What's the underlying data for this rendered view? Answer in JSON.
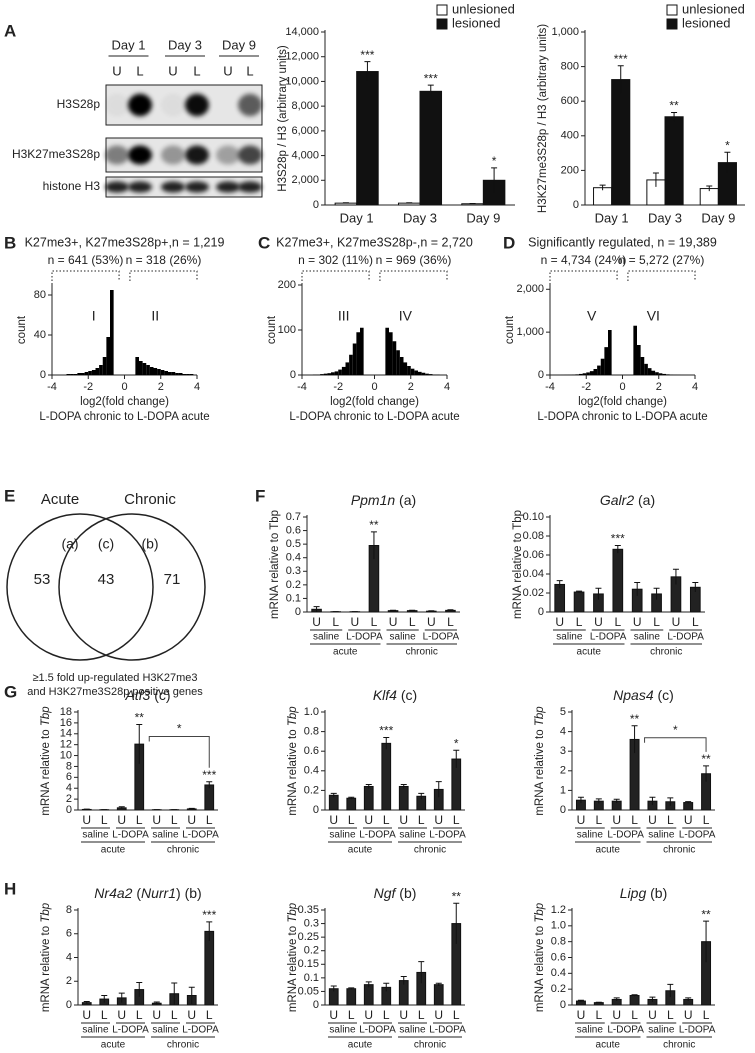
{
  "panels": [
    "A",
    "B",
    "C",
    "D",
    "E",
    "F",
    "G",
    "H"
  ],
  "blot": {
    "days": [
      "Day 1",
      "Day 3",
      "Day 9"
    ],
    "lanes": [
      "U",
      "L",
      "U",
      "L",
      "U",
      "L"
    ],
    "rows": [
      "H3S28p",
      "H3K27me3S28p",
      "histone H3"
    ]
  },
  "venn": {
    "sets": [
      "Acute",
      "Chronic"
    ],
    "regions": [
      {
        "label": "(a)",
        "count": 53
      },
      {
        "label": "(c)",
        "count": 43
      },
      {
        "label": "(b)",
        "count": 71
      }
    ],
    "caption": [
      "≥1.5 fold up-regulated H3K27me3",
      "and H3K27me3S28p positive genes"
    ]
  },
  "chart_data": [
    {
      "type": "bar",
      "ylabel": "H3S28p / H3 (arbitrary units)",
      "categories": [
        "Day 1",
        "Day 3",
        "Day 9"
      ],
      "series": [
        {
          "name": "unlesioned",
          "color": "#ffffff",
          "values": [
            150,
            150,
            100
          ],
          "errors": [
            30,
            30,
            20
          ]
        },
        {
          "name": "lesioned",
          "color": "#111111",
          "values": [
            10800,
            9200,
            2000
          ],
          "errors": [
            800,
            500,
            1000
          ],
          "annotations": [
            "***",
            "***",
            "*"
          ]
        }
      ],
      "ylim": [
        0,
        14000
      ],
      "yticks": [
        0,
        {
          "value": 2000,
          "label": "2,000"
        },
        {
          "value": 4000,
          "label": "4,000"
        },
        {
          "value": 6000,
          "label": "6,000"
        },
        {
          "value": 8000,
          "label": "8,000"
        },
        {
          "value": 10000,
          "label": "10,000"
        },
        {
          "value": 12000,
          "label": "12,000"
        },
        {
          "value": 14000,
          "label": "14,000"
        }
      ],
      "legend": "upper right"
    },
    {
      "type": "bar",
      "ylabel": "H3K27me3S28p / H3 (arbitrary units)",
      "categories": [
        "Day 1",
        "Day 3",
        "Day 9"
      ],
      "series": [
        {
          "name": "unlesioned",
          "color": "#ffffff",
          "values": [
            100,
            145,
            95
          ],
          "errors": [
            15,
            40,
            15
          ]
        },
        {
          "name": "lesioned",
          "color": "#111111",
          "values": [
            725,
            510,
            245
          ],
          "errors": [
            80,
            25,
            60
          ],
          "annotations": [
            "***",
            "**",
            "*"
          ]
        }
      ],
      "ylim": [
        0,
        1000
      ],
      "yticks": [
        0,
        200,
        400,
        600,
        800,
        {
          "value": 1000,
          "label": "1,000"
        }
      ],
      "legend": "upper right"
    },
    {
      "type": "histogram",
      "title": "K27me3+, K27me3S28p+,n = 1,219",
      "subsets": [
        "n = 641 (53%)",
        "n = 318 (26%)"
      ],
      "regions": [
        "I",
        "II"
      ],
      "ylabel": "count",
      "xlabel": [
        "log2(fold change)",
        "L-DOPA chronic to L-DOPA acute"
      ],
      "color": "#000000",
      "bins": [
        -4,
        -3.8,
        -3.6,
        -3.4,
        -3.2,
        -3,
        -2.8,
        -2.6,
        -2.4,
        -2.2,
        -2,
        -1.8,
        -1.6,
        -1.4,
        -1.2,
        -1,
        -0.8,
        -0.6,
        -0.4,
        -0.2,
        0,
        0.2,
        0.4,
        0.6,
        0.8,
        1,
        1.2,
        1.4,
        1.6,
        1.8,
        2,
        2.2,
        2.4,
        2.6,
        2.8,
        3,
        3.2,
        3.4,
        3.6,
        3.8,
        4
      ],
      "counts": [
        0,
        0,
        0,
        0,
        1,
        1,
        1,
        2,
        2,
        3,
        4,
        5,
        7,
        10,
        18,
        38,
        85,
        0,
        0,
        0,
        0,
        0,
        0,
        18,
        14,
        12,
        10,
        8,
        7,
        6,
        5,
        4,
        3,
        3,
        2,
        2,
        1,
        1,
        1,
        0
      ],
      "xlim": [
        -4,
        4
      ],
      "xticks": [
        -4,
        -2,
        0,
        2,
        4
      ],
      "ylim": [
        0,
        90
      ],
      "yticks": [
        0,
        40,
        80
      ]
    },
    {
      "type": "histogram",
      "title": "K27me3+, K27me3S28p-,n = 2,720",
      "subsets": [
        "n = 302 (11%)",
        "n = 969 (36%)"
      ],
      "regions": [
        "III",
        "IV"
      ],
      "ylabel": "count",
      "xlabel": [
        "log2(fold change)",
        "L-DOPA chronic to L-DOPA acute"
      ],
      "color": "#000000",
      "bins": [
        -4,
        -3.8,
        -3.6,
        -3.4,
        -3.2,
        -3,
        -2.8,
        -2.6,
        -2.4,
        -2.2,
        -2,
        -1.8,
        -1.6,
        -1.4,
        -1.2,
        -1,
        -0.8,
        -0.6,
        -0.4,
        -0.2,
        0,
        0.2,
        0.4,
        0.6,
        0.8,
        1,
        1.2,
        1.4,
        1.6,
        1.8,
        2,
        2.2,
        2.4,
        2.6,
        2.8,
        3,
        3.2,
        3.4,
        3.6,
        3.8,
        4
      ],
      "counts": [
        0,
        0,
        0,
        1,
        1,
        2,
        3,
        4,
        6,
        8,
        12,
        18,
        28,
        45,
        70,
        95,
        105,
        0,
        0,
        0,
        0,
        0,
        0,
        105,
        95,
        75,
        55,
        40,
        28,
        20,
        14,
        10,
        7,
        5,
        3,
        2,
        1,
        1,
        0,
        0
      ],
      "xlim": [
        -4,
        4
      ],
      "xticks": [
        -4,
        -2,
        0,
        2,
        4
      ],
      "ylim": [
        0,
        200
      ],
      "yticks": [
        0,
        100,
        200
      ]
    },
    {
      "type": "histogram",
      "title": "Significantly regulated, n = 19,389",
      "subsets": [
        "n = 4,734 (24%)",
        "n = 5,272 (27%)"
      ],
      "regions": [
        "V",
        "VI"
      ],
      "ylabel": "count",
      "xlabel": [
        "log2(fold change)",
        "L-DOPA chronic to L-DOPA acute"
      ],
      "color": "#000000",
      "bins": [
        -4,
        -3.8,
        -3.6,
        -3.4,
        -3.2,
        -3,
        -2.8,
        -2.6,
        -2.4,
        -2.2,
        -2,
        -1.8,
        -1.6,
        -1.4,
        -1.2,
        -1,
        -0.8,
        -0.6,
        -0.4,
        -0.2,
        0,
        0.2,
        0.4,
        0.6,
        0.8,
        1,
        1.2,
        1.4,
        1.6,
        1.8,
        2,
        2.2,
        2.4,
        2.6,
        2.8,
        3,
        3.2,
        3.4,
        3.6,
        3.8,
        4
      ],
      "counts": [
        0,
        0,
        0,
        2,
        4,
        6,
        10,
        15,
        25,
        40,
        60,
        90,
        140,
        220,
        380,
        650,
        1050,
        0,
        0,
        0,
        0,
        0,
        0,
        1150,
        700,
        420,
        260,
        160,
        100,
        65,
        40,
        25,
        15,
        10,
        6,
        4,
        2,
        1,
        0,
        0
      ],
      "xlim": [
        -4,
        4
      ],
      "xticks": [
        -4,
        -2,
        0,
        2,
        4
      ],
      "ylim": [
        0,
        2100
      ],
      "yticks": [
        0,
        {
          "value": 1000,
          "label": "1,000"
        },
        {
          "value": 2000,
          "label": "2,000"
        }
      ]
    },
    {
      "type": "bar",
      "title": [
        {
          "text": "Ppm1n",
          "italic": true
        },
        {
          "text": " (a)",
          "italic": false
        }
      ],
      "ylabel": [
        {
          "text": "mRNA relative to Tbp",
          "italic": false
        }
      ],
      "categories": [
        "U",
        "L",
        "U",
        "L",
        "U",
        "L",
        "U",
        "L"
      ],
      "groups": [
        "saline",
        "L-DOPA",
        "saline",
        "L-DOPA"
      ],
      "supergroups": [
        "acute",
        "chronic"
      ],
      "color": "#222222",
      "values": [
        0.02,
        0.002,
        0.002,
        0.49,
        0.01,
        0.01,
        0.006,
        0.012
      ],
      "errors": [
        0.02,
        0.001,
        0.001,
        0.1,
        0.003,
        0.003,
        0.003,
        0.005
      ],
      "annotations": [
        null,
        null,
        null,
        "**",
        null,
        null,
        null,
        null
      ],
      "ylim": [
        0,
        0.7
      ],
      "yticks": [
        0,
        0.1,
        0.2,
        0.3,
        0.4,
        0.5,
        0.6,
        0.7
      ]
    },
    {
      "type": "bar",
      "title": [
        {
          "text": "Galr2",
          "italic": true
        },
        {
          "text": " (a)",
          "italic": false
        }
      ],
      "ylabel": [
        {
          "text": "mRNA relative to Tbp",
          "italic": false
        }
      ],
      "categories": [
        "U",
        "L",
        "U",
        "L",
        "U",
        "L",
        "U",
        "L"
      ],
      "groups": [
        "saline",
        "L-DOPA",
        "saline",
        "L-DOPA"
      ],
      "supergroups": [
        "acute",
        "chronic"
      ],
      "color": "#222222",
      "values": [
        0.029,
        0.021,
        0.019,
        0.066,
        0.024,
        0.019,
        0.037,
        0.026
      ],
      "errors": [
        0.004,
        0.001,
        0.006,
        0.004,
        0.007,
        0.006,
        0.008,
        0.005
      ],
      "annotations": [
        null,
        null,
        null,
        "***",
        null,
        null,
        null,
        null
      ],
      "ylim": [
        0,
        0.1
      ],
      "yticks": [
        0,
        0.02,
        0.04,
        0.06,
        0.08,
        {
          "value": 0.1,
          "label": "0.10"
        }
      ]
    },
    {
      "type": "bar",
      "title": [
        {
          "text": "Atf3",
          "italic": true
        },
        {
          "text": " (c)",
          "italic": false
        }
      ],
      "ylabel": [
        {
          "text": "mRNA relative to ",
          "italic": false
        },
        {
          "text": "Tbp",
          "italic": true
        }
      ],
      "categories": [
        "U",
        "L",
        "U",
        "L",
        "U",
        "L",
        "U",
        "L"
      ],
      "groups": [
        "saline",
        "L-DOPA",
        "saline",
        "L-DOPA"
      ],
      "supergroups": [
        "acute",
        "chronic"
      ],
      "color": "#222222",
      "values": [
        0.1,
        0.05,
        0.4,
        12.1,
        0.05,
        0.05,
        0.2,
        4.6
      ],
      "errors": [
        0.05,
        0.02,
        0.2,
        3.6,
        0.02,
        0.02,
        0.1,
        0.6
      ],
      "annotations": [
        null,
        null,
        null,
        "**",
        null,
        null,
        null,
        "***"
      ],
      "bracket_label": "*",
      "ylim": [
        0,
        18
      ],
      "yticks": [
        0,
        2,
        4,
        6,
        8,
        10,
        12,
        14,
        16,
        18
      ]
    },
    {
      "type": "bar",
      "title": [
        {
          "text": "Klf4",
          "italic": true
        },
        {
          "text": " (c)",
          "italic": false
        }
      ],
      "ylabel": [
        {
          "text": "mRNA relative to ",
          "italic": false
        },
        {
          "text": "Tbp",
          "italic": true
        }
      ],
      "categories": [
        "U",
        "L",
        "U",
        "L",
        "U",
        "L",
        "U",
        "L"
      ],
      "groups": [
        "saline",
        "L-DOPA",
        "saline",
        "L-DOPA"
      ],
      "supergroups": [
        "acute",
        "chronic"
      ],
      "color": "#222222",
      "values": [
        0.15,
        0.12,
        0.24,
        0.68,
        0.24,
        0.14,
        0.21,
        0.52
      ],
      "errors": [
        0.02,
        0.01,
        0.02,
        0.06,
        0.02,
        0.03,
        0.08,
        0.09
      ],
      "annotations": [
        null,
        null,
        null,
        "***",
        null,
        null,
        null,
        "*"
      ],
      "ylim": [
        0,
        1
      ],
      "yticks": [
        0,
        0.2,
        0.4,
        0.6,
        0.8,
        {
          "value": 1,
          "label": "1.0"
        }
      ]
    },
    {
      "type": "bar",
      "title": [
        {
          "text": "Npas4",
          "italic": true
        },
        {
          "text": " (c)",
          "italic": false
        }
      ],
      "ylabel": [
        {
          "text": "mRNA relative to ",
          "italic": false
        },
        {
          "text": "Tbp",
          "italic": true
        }
      ],
      "categories": [
        "U",
        "L",
        "U",
        "L",
        "U",
        "L",
        "U",
        "L"
      ],
      "groups": [
        "saline",
        "L-DOPA",
        "saline",
        "L-DOPA"
      ],
      "supergroups": [
        "acute",
        "chronic"
      ],
      "color": "#222222",
      "values": [
        0.5,
        0.45,
        0.45,
        3.6,
        0.45,
        0.42,
        0.38,
        1.85
      ],
      "errors": [
        0.15,
        0.12,
        0.1,
        0.7,
        0.2,
        0.2,
        0.05,
        0.4
      ],
      "annotations": [
        null,
        null,
        null,
        "**",
        null,
        null,
        null,
        "**"
      ],
      "bracket_label": "*",
      "ylim": [
        0,
        5
      ],
      "yticks": [
        0,
        1,
        2,
        3,
        4,
        5
      ]
    },
    {
      "type": "bar",
      "title": [
        {
          "text": "Nr4a2",
          "italic": true
        },
        {
          "text": " (",
          "italic": false
        },
        {
          "text": "Nurr1",
          "italic": true
        },
        {
          "text": ") (b)",
          "italic": false
        }
      ],
      "ylabel": [
        {
          "text": "mRNA relative to ",
          "italic": false
        },
        {
          "text": "Tbp",
          "italic": true
        }
      ],
      "categories": [
        "U",
        "L",
        "U",
        "L",
        "U",
        "L",
        "U",
        "L"
      ],
      "groups": [
        "saline",
        "L-DOPA",
        "saline",
        "L-DOPA"
      ],
      "supergroups": [
        "acute",
        "chronic"
      ],
      "color": "#222222",
      "values": [
        0.2,
        0.5,
        0.6,
        1.3,
        0.15,
        0.95,
        0.8,
        6.2
      ],
      "errors": [
        0.1,
        0.3,
        0.4,
        0.6,
        0.1,
        0.9,
        0.7,
        0.8
      ],
      "annotations": [
        null,
        null,
        null,
        null,
        null,
        null,
        null,
        "***"
      ],
      "ylim": [
        0,
        8
      ],
      "yticks": [
        0,
        2,
        4,
        6,
        8
      ]
    },
    {
      "type": "bar",
      "title": [
        {
          "text": "Ngf",
          "italic": true
        },
        {
          "text": " (b)",
          "italic": false
        }
      ],
      "ylabel": [
        {
          "text": "mRNA relative to ",
          "italic": false
        },
        {
          "text": "Tbp",
          "italic": true
        }
      ],
      "categories": [
        "U",
        "L",
        "U",
        "L",
        "U",
        "L",
        "U",
        "L"
      ],
      "groups": [
        "saline",
        "L-DOPA",
        "saline",
        "L-DOPA"
      ],
      "supergroups": [
        "acute",
        "chronic"
      ],
      "color": "#222222",
      "values": [
        0.06,
        0.06,
        0.075,
        0.065,
        0.09,
        0.12,
        0.075,
        0.3
      ],
      "errors": [
        0.01,
        0.003,
        0.01,
        0.015,
        0.015,
        0.04,
        0.005,
        0.075
      ],
      "annotations": [
        null,
        null,
        null,
        null,
        null,
        null,
        null,
        "**"
      ],
      "ylim": [
        0,
        0.35
      ],
      "yticks": [
        0,
        0.05,
        0.1,
        0.15,
        0.2,
        0.25,
        0.3,
        0.35
      ]
    },
    {
      "type": "bar",
      "title": [
        {
          "text": "Lipg",
          "italic": true
        },
        {
          "text": " (b)",
          "italic": false
        }
      ],
      "ylabel": [
        {
          "text": "mRNA relative to ",
          "italic": false
        },
        {
          "text": "Tbp",
          "italic": true
        }
      ],
      "categories": [
        "U",
        "L",
        "U",
        "L",
        "U",
        "L",
        "U",
        "L"
      ],
      "groups": [
        "saline",
        "L-DOPA",
        "saline",
        "L-DOPA"
      ],
      "supergroups": [
        "acute",
        "chronic"
      ],
      "color": "#222222",
      "values": [
        0.05,
        0.03,
        0.07,
        0.12,
        0.07,
        0.18,
        0.07,
        0.8
      ],
      "errors": [
        0.01,
        0.005,
        0.02,
        0.01,
        0.03,
        0.08,
        0.02,
        0.26
      ],
      "annotations": [
        null,
        null,
        null,
        null,
        null,
        null,
        null,
        "**"
      ],
      "ylim": [
        0,
        1.2
      ],
      "yticks": [
        0,
        0.2,
        0.4,
        0.6,
        0.8,
        {
          "value": 1,
          "label": "1.0"
        },
        1.2
      ]
    }
  ]
}
